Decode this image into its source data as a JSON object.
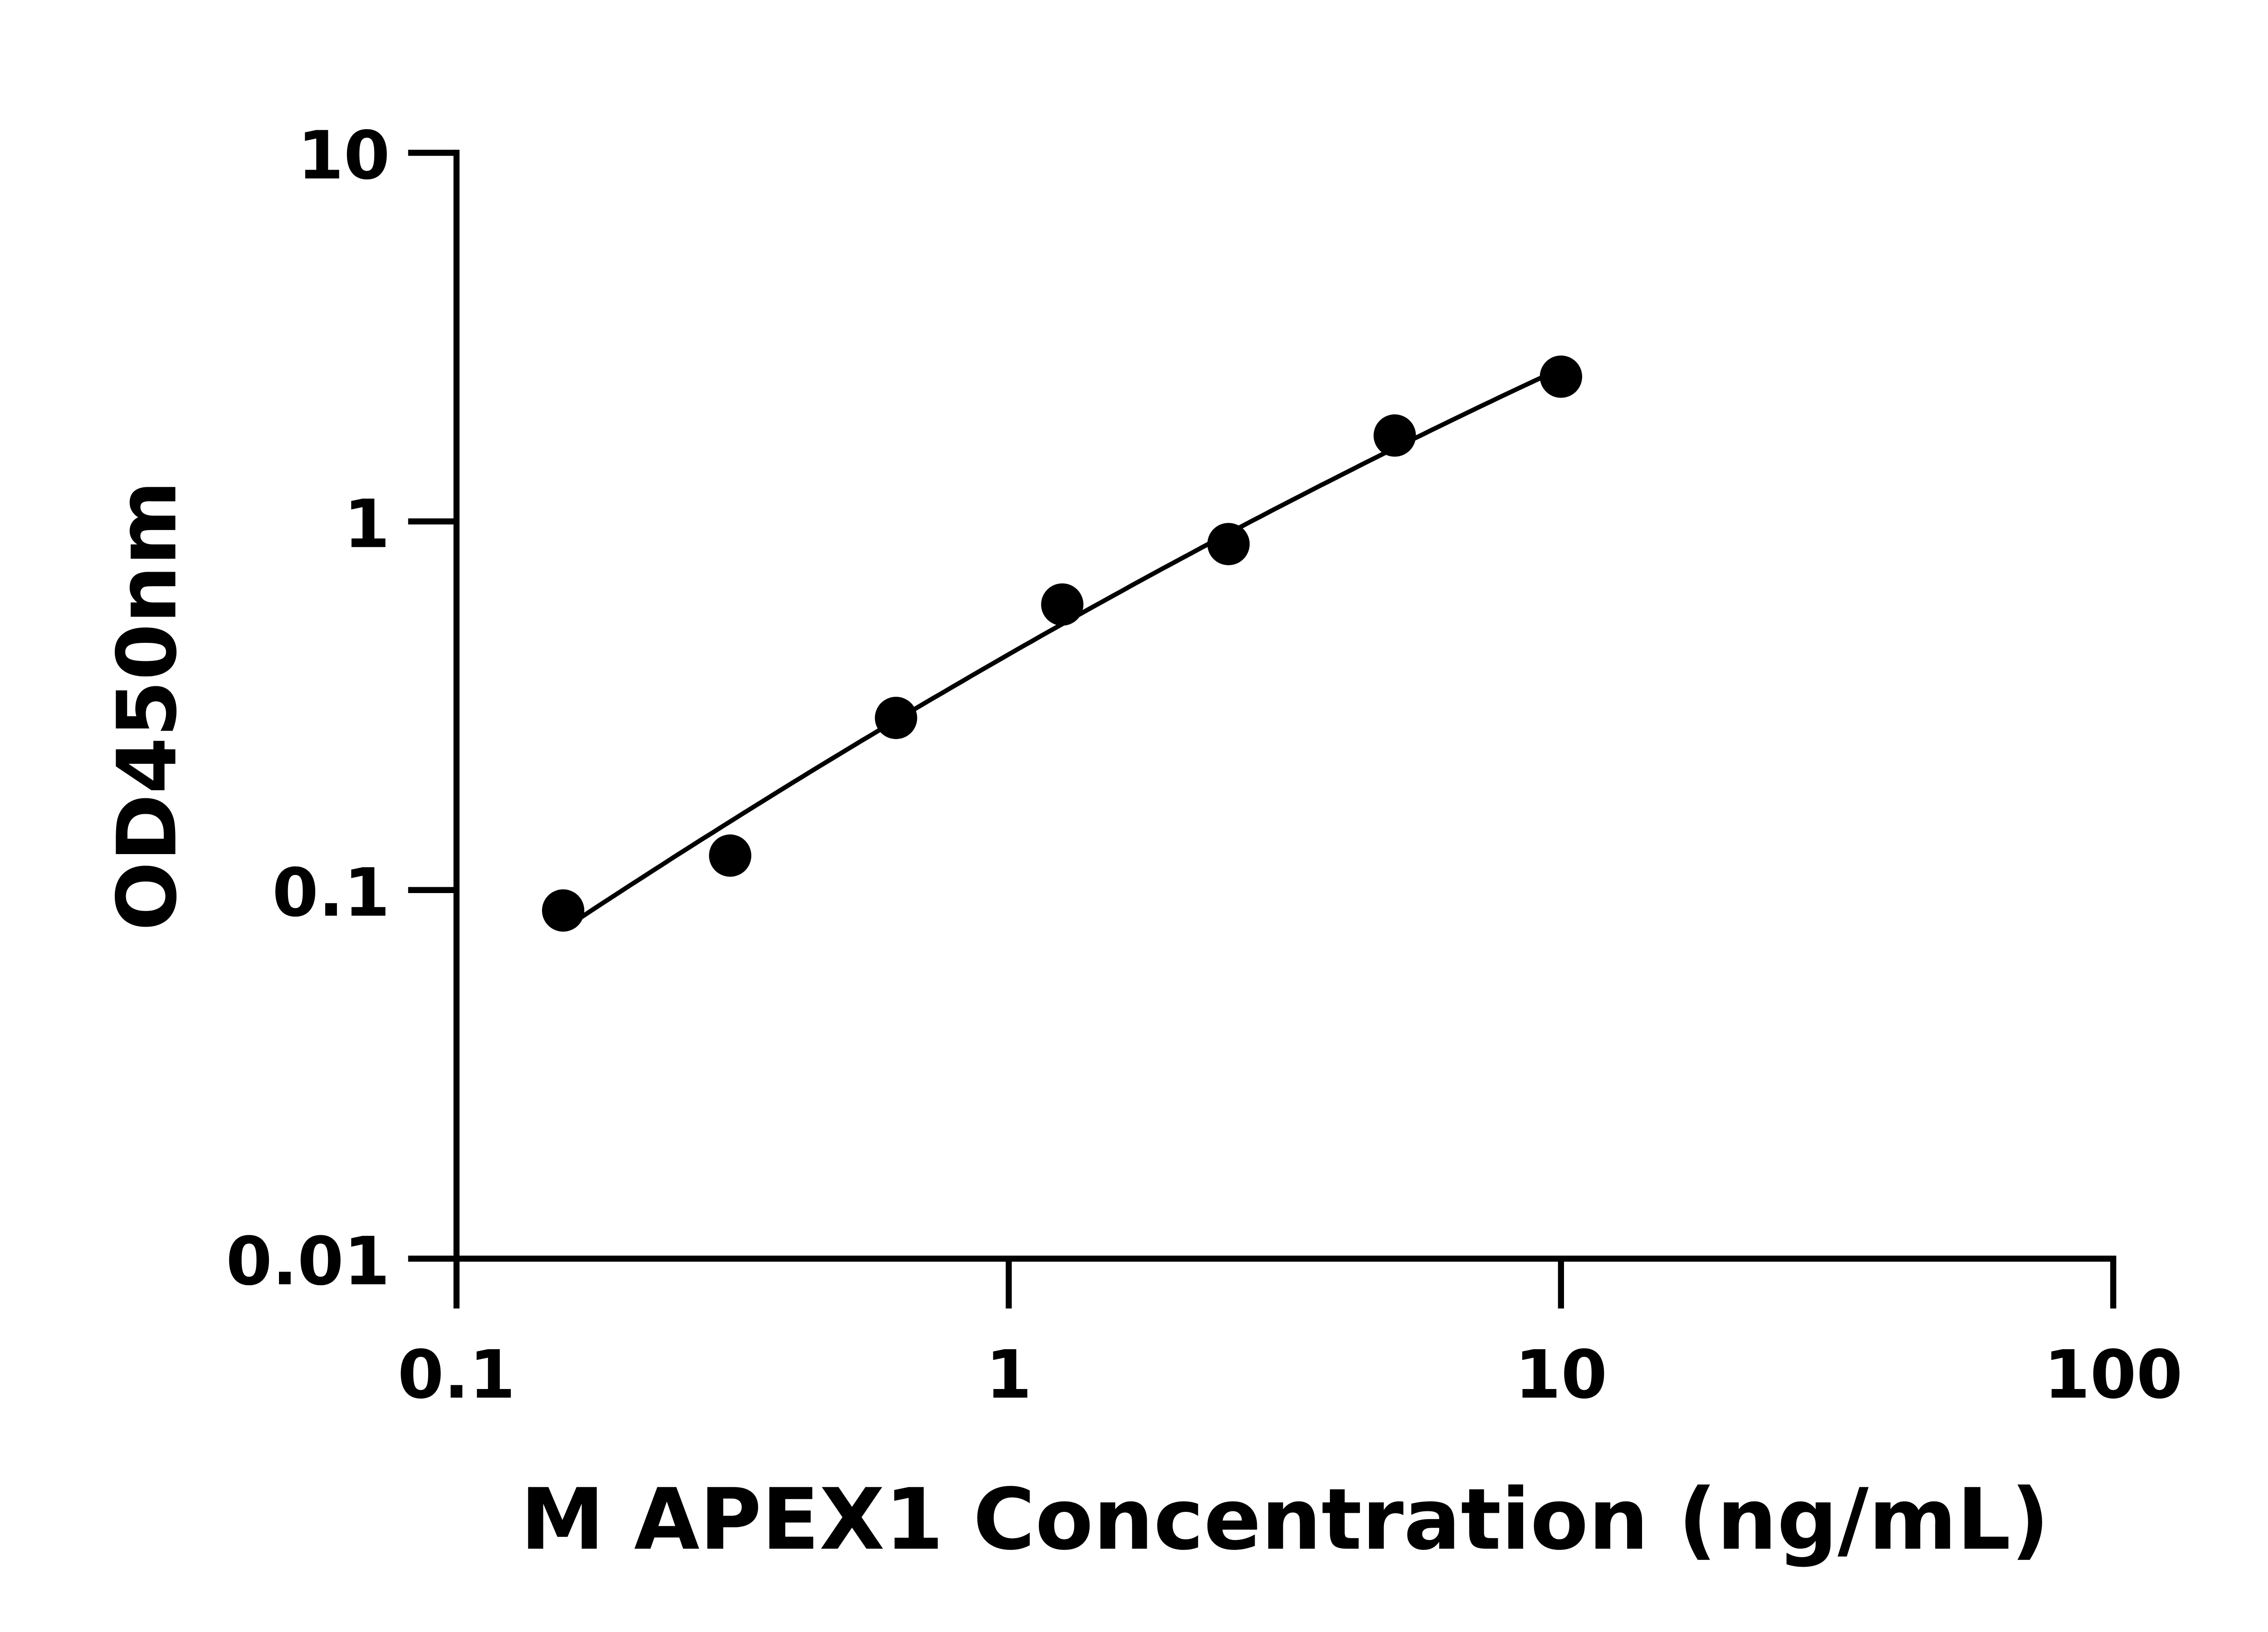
{
  "chart_data": {
    "type": "scatter",
    "title": "",
    "xlabel": "M APEX1 Concentration (ng/mL)",
    "ylabel": "OD450nm",
    "x_scale": "log",
    "y_scale": "log",
    "xlim": [
      0.1,
      100
    ],
    "ylim": [
      0.01,
      10
    ],
    "x_ticks": [
      0.1,
      1,
      10,
      100
    ],
    "x_tick_labels": [
      "0.1",
      "1",
      "10",
      "100"
    ],
    "y_ticks": [
      0.01,
      0.1,
      1,
      10
    ],
    "y_tick_labels": [
      "0.01",
      "0.1",
      "1",
      "10"
    ],
    "grid": false,
    "legend": "none",
    "fit_curve": true,
    "color": "#000000",
    "series": [
      {
        "x": [
          0.156,
          0.313,
          0.625,
          1.25,
          2.5,
          5,
          10
        ],
        "y": [
          0.088,
          0.124,
          0.293,
          0.595,
          0.868,
          1.71,
          2.47
        ]
      }
    ]
  }
}
